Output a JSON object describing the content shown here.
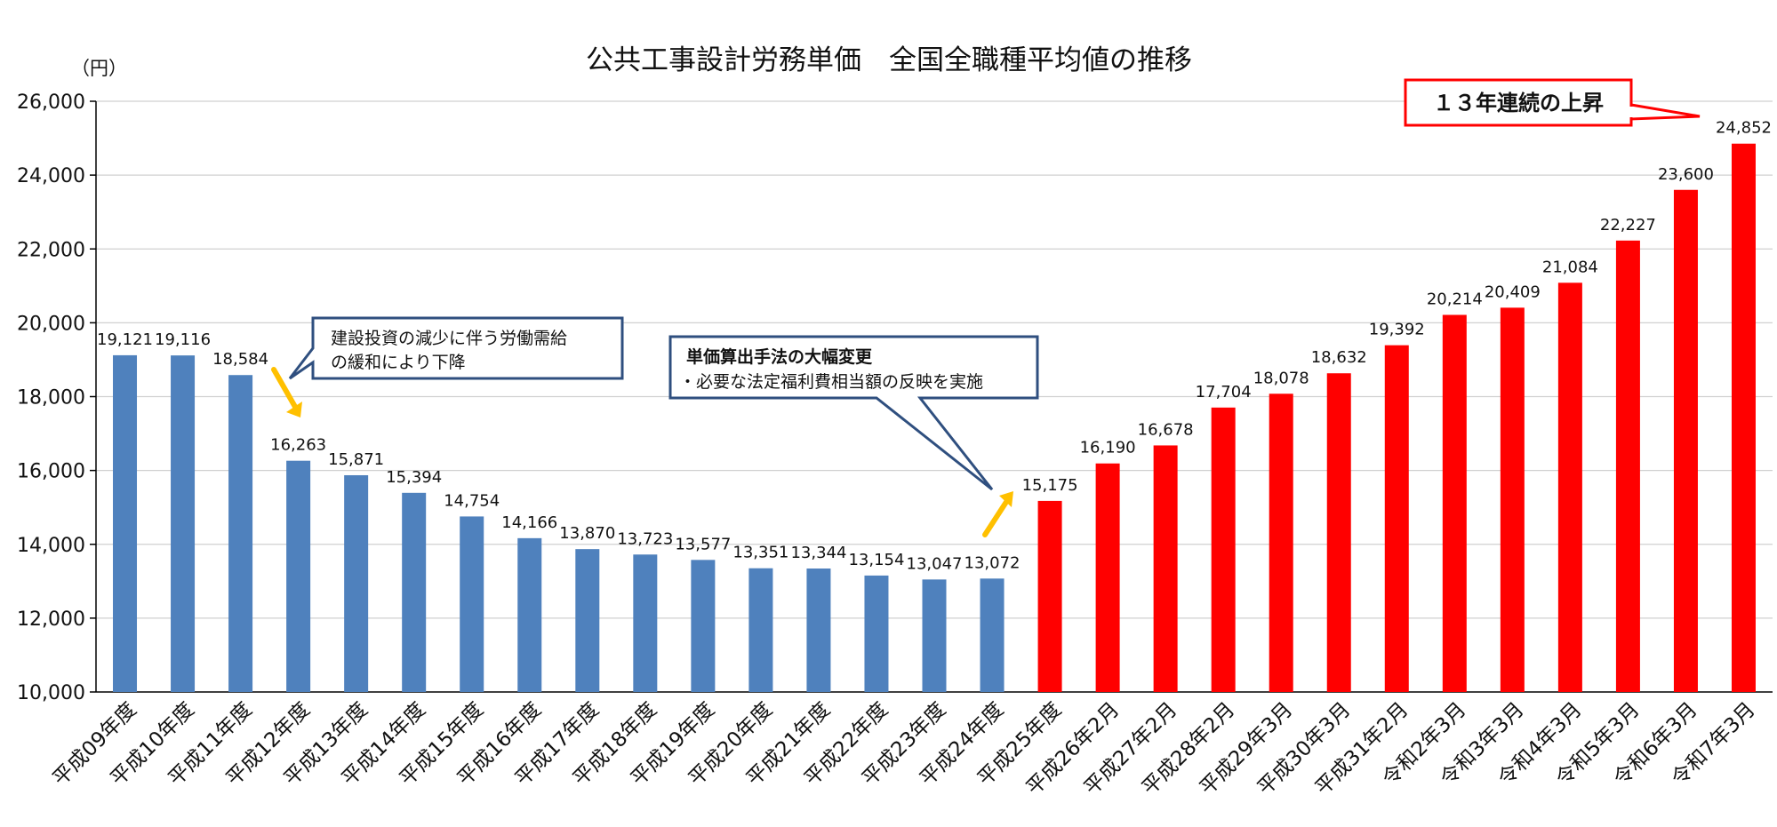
{
  "chart_data": {
    "type": "bar",
    "title": "公共工事設計労務単価　全国全職種平均値の推移",
    "ylabel": "（円）",
    "ylim": [
      10000,
      26000
    ],
    "yticks": [
      10000,
      12000,
      14000,
      16000,
      18000,
      20000,
      22000,
      24000,
      26000
    ],
    "ytick_labels": [
      "10,000",
      "12,000",
      "14,000",
      "16,000",
      "18,000",
      "20,000",
      "22,000",
      "24,000",
      "26,000"
    ],
    "grid": true,
    "categories": [
      "平成09年度",
      "平成10年度",
      "平成11年度",
      "平成12年度",
      "平成13年度",
      "平成14年度",
      "平成15年度",
      "平成16年度",
      "平成17年度",
      "平成18年度",
      "平成19年度",
      "平成20年度",
      "平成21年度",
      "平成22年度",
      "平成23年度",
      "平成24年度",
      "平成25年度",
      "平成26年2月",
      "平成27年2月",
      "平成28年2月",
      "平成29年3月",
      "平成30年3月",
      "平成31年2月",
      "令和2年3月",
      "令和3年3月",
      "令和4年3月",
      "令和5年3月",
      "令和6年3月",
      "令和7年3月"
    ],
    "values": [
      19121,
      19116,
      18584,
      16263,
      15871,
      15394,
      14754,
      14166,
      13870,
      13723,
      13577,
      13351,
      13344,
      13154,
      13047,
      13072,
      15175,
      16190,
      16678,
      17704,
      18078,
      18632,
      19392,
      20214,
      20409,
      21084,
      22227,
      23600,
      24852
    ],
    "value_labels": [
      "19,121",
      "19,116",
      "18,584",
      "16,263",
      "15,871",
      "15,394",
      "14,754",
      "14,166",
      "13,870",
      "13,723",
      "13,577",
      "13,351",
      "13,344",
      "13,154",
      "13,047",
      "13,072",
      "15,175",
      "16,190",
      "16,678",
      "17,704",
      "18,078",
      "18,632",
      "19,392",
      "20,214",
      "20,409",
      "21,084",
      "22,227",
      "23,600",
      "24,852"
    ],
    "colors": {
      "blue": "#4f81bd",
      "red": "#ff0000",
      "arrow": "#ffc000",
      "callout_border": "#2f4f7f",
      "badge_border": "#ff0000"
    },
    "red_start_index": 16,
    "annotations": {
      "decline_callout": [
        "建設投資の減少に伴う労働需給",
        "の緩和により下降"
      ],
      "method_callout_title": "単価算出手法の大幅変更",
      "method_callout_body": "・必要な法定福利費相当額の反映を実施",
      "badge": "１３年連続の上昇"
    }
  }
}
